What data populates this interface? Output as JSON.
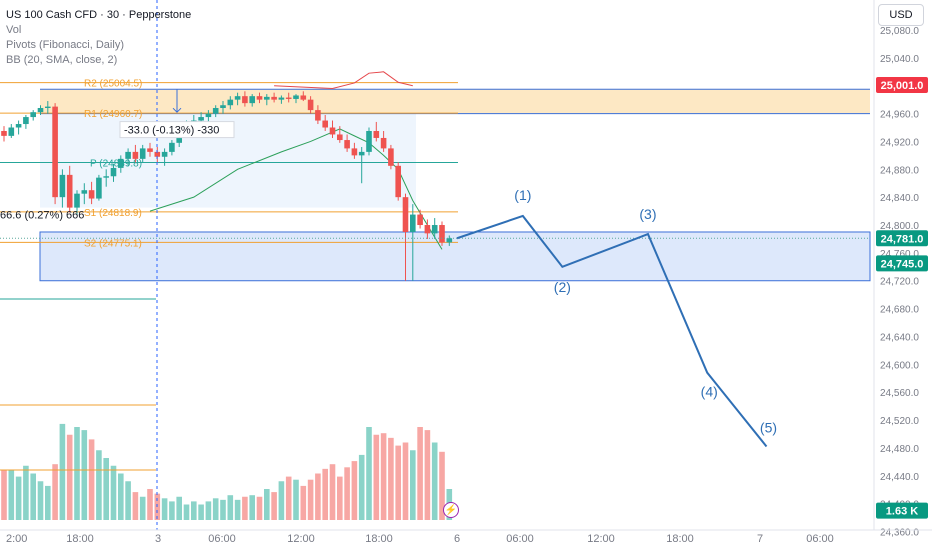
{
  "header": {
    "symbol_title": "US 100 Cash CFD · 30 · Pepperstone",
    "indicators": [
      "Vol",
      "Pivots (Fibonacci, Daily)",
      "BB (20, SMA, close, 2)"
    ],
    "currency": "USD"
  },
  "colors": {
    "up": "#26a69a",
    "down": "#ef5350",
    "pivot": "#f0a030",
    "bb_upper": "#e5474b",
    "bb_lower": "#2ca05a",
    "wave": "#2f6fb5",
    "zone_orange": "#fde8c4",
    "zone_blue": "#dde8fb",
    "price_red": "#f23645",
    "price_green": "#089981"
  },
  "chart_data": {
    "type": "candlestick",
    "y_axis": {
      "ticks": [
        "25,080.0",
        "25,040.0",
        "25,000.0",
        "24,960.0",
        "24,920.0",
        "24,880.0",
        "24,840.0",
        "24,800.0",
        "24,760.0",
        "24,720.0",
        "24,680.0",
        "24,640.0",
        "24,600.0",
        "24,560.0",
        "24,520.0",
        "24,480.0",
        "24,440.0",
        "24,400.0",
        "24,360.0"
      ],
      "ylim": [
        24360,
        25080
      ]
    },
    "x_axis": {
      "ticks": [
        "2:00",
        "18:00",
        "3",
        "06:00",
        "12:00",
        "18:00",
        "6",
        "06:00",
        "12:00",
        "18:00",
        "7",
        "06:00"
      ]
    },
    "candles": [
      [
        24935,
        24942,
        24920,
        24928
      ],
      [
        24928,
        24945,
        24925,
        24940
      ],
      [
        24940,
        24950,
        24930,
        24945
      ],
      [
        24945,
        24958,
        24938,
        24955
      ],
      [
        24955,
        24965,
        24950,
        24962
      ],
      [
        24962,
        24972,
        24958,
        24968
      ],
      [
        24968,
        24978,
        24960,
        24970
      ],
      [
        24970,
        24975,
        24830,
        24840
      ],
      [
        24840,
        24880,
        24825,
        24872
      ],
      [
        24872,
        24885,
        24818,
        24825
      ],
      [
        24825,
        24850,
        24815,
        24845
      ],
      [
        24845,
        24860,
        24830,
        24850
      ],
      [
        24850,
        24862,
        24830,
        24838
      ],
      [
        24838,
        24872,
        24835,
        24868
      ],
      [
        24868,
        24880,
        24855,
        24870
      ],
      [
        24870,
        24888,
        24862,
        24882
      ],
      [
        24882,
        24900,
        24875,
        24895
      ],
      [
        24895,
        24910,
        24885,
        24905
      ],
      [
        24905,
        24915,
        24890,
        24895
      ],
      [
        24895,
        24915,
        24890,
        24910
      ],
      [
        24910,
        24918,
        24898,
        24905
      ],
      [
        24905,
        24912,
        24890,
        24898
      ],
      [
        24898,
        24910,
        24885,
        24905
      ],
      [
        24905,
        24922,
        24900,
        24918
      ],
      [
        24918,
        24935,
        24912,
        24932
      ],
      [
        24932,
        24950,
        24928,
        24945
      ],
      [
        24945,
        24958,
        24938,
        24950
      ],
      [
        24950,
        24962,
        24940,
        24955
      ],
      [
        24955,
        24965,
        24948,
        24960
      ],
      [
        24960,
        24972,
        24955,
        24968
      ],
      [
        24968,
        24978,
        24960,
        24972
      ],
      [
        24972,
        24985,
        24966,
        24980
      ],
      [
        24980,
        24990,
        24972,
        24985
      ],
      [
        24985,
        24992,
        24970,
        24975
      ],
      [
        24975,
        24988,
        24970,
        24985
      ],
      [
        24985,
        24990,
        24975,
        24980
      ],
      [
        24980,
        24988,
        24972,
        24984
      ],
      [
        24984,
        24990,
        24976,
        24980
      ],
      [
        24980,
        24986,
        24974,
        24983
      ],
      [
        24983,
        24990,
        24976,
        24981
      ],
      [
        24981,
        24988,
        24975,
        24986
      ],
      [
        24986,
        24992,
        24978,
        24980
      ],
      [
        24980,
        24985,
        24960,
        24965
      ],
      [
        24965,
        24972,
        24945,
        24950
      ],
      [
        24950,
        24958,
        24935,
        24940
      ],
      [
        24940,
        24950,
        24925,
        24930
      ],
      [
        24930,
        24942,
        24918,
        24922
      ],
      [
        24922,
        24930,
        24905,
        24910
      ],
      [
        24910,
        24918,
        24895,
        24900
      ],
      [
        24900,
        24912,
        24860,
        24905
      ],
      [
        24905,
        24940,
        24900,
        24935
      ],
      [
        24935,
        24948,
        24920,
        24925
      ],
      [
        24925,
        24935,
        24905,
        24910
      ],
      [
        24910,
        24915,
        24880,
        24885
      ],
      [
        24885,
        24890,
        24835,
        24840
      ],
      [
        24840,
        24845,
        24720,
        24790
      ],
      [
        24790,
        24830,
        24720,
        24815
      ],
      [
        24815,
        24822,
        24795,
        24800
      ],
      [
        24800,
        24808,
        24780,
        24788
      ],
      [
        24788,
        24810,
        24780,
        24800
      ],
      [
        24800,
        24805,
        24770,
        24775
      ],
      [
        24775,
        24785,
        24770,
        24781
      ]
    ],
    "volume_pct": [
      32,
      32,
      28,
      35,
      30,
      25,
      22,
      36,
      62,
      55,
      60,
      58,
      52,
      45,
      40,
      35,
      30,
      25,
      18,
      15,
      20,
      17,
      14,
      12,
      15,
      10,
      12,
      10,
      12,
      14,
      13,
      16,
      13,
      15,
      16,
      15,
      20,
      18,
      25,
      28,
      26,
      22,
      26,
      30,
      33,
      36,
      28,
      34,
      38,
      42,
      60,
      55,
      56,
      53,
      48,
      50,
      45,
      60,
      58,
      50,
      44,
      20
    ],
    "pivots": [
      {
        "label": "R2 (25004.5)",
        "value": 25004.5
      },
      {
        "label": "R1 (24960.7)",
        "value": 24960.7
      },
      {
        "label": "P (24889.8)",
        "value": 24889.8
      },
      {
        "label": "S1 (24818.9)",
        "value": 24818.9
      },
      {
        "label": "S2 (24775.1)",
        "value": 24775.1
      }
    ],
    "bb_upper": [
      [
        37,
        25000
      ],
      [
        41,
        24998
      ],
      [
        45,
        24996
      ],
      [
        48,
        25004
      ],
      [
        50,
        25018
      ],
      [
        52,
        25020
      ],
      [
        54,
        25005
      ],
      [
        56,
        25000
      ]
    ],
    "bb_lower": [
      [
        20,
        24820
      ],
      [
        26,
        24840
      ],
      [
        32,
        24880
      ],
      [
        38,
        24905
      ],
      [
        42,
        24920
      ],
      [
        46,
        24938
      ],
      [
        48,
        24928
      ],
      [
        50,
        24918
      ],
      [
        52,
        24900
      ],
      [
        54,
        24880
      ],
      [
        56,
        24835
      ],
      [
        60,
        24765
      ]
    ],
    "zones": [
      {
        "type": "supply",
        "from": 24960,
        "to": 24995
      },
      {
        "type": "demand",
        "from": 24720,
        "to": 24790
      }
    ],
    "measure_labels": [
      {
        "text": "-33.0 (-0.13%) -330",
        "price": 24937
      },
      {
        "text": "66.6 (0.27%) 666",
        "price": 24815
      }
    ],
    "wave_path": [
      {
        "label": "",
        "time": "6 00:00",
        "price": 24781
      },
      {
        "label": "(1)",
        "time": "6 05:00",
        "price": 24813
      },
      {
        "label": "(2)",
        "time": "6 08:00",
        "price": 24740
      },
      {
        "label": "(3)",
        "time": "6 14:30",
        "price": 24787
      },
      {
        "label": "(4)",
        "time": "6 19:00",
        "price": 24588
      },
      {
        "label": "(5)",
        "time": "6 23:30",
        "price": 24482
      }
    ],
    "price_labels": [
      {
        "text": "25,001.0",
        "price": 25001,
        "color": "#f23645"
      },
      {
        "text": "24,781.0",
        "price": 24781,
        "color": "#089981"
      },
      {
        "text": "24,745.0",
        "price": 24745,
        "color": "#089981"
      },
      {
        "text": "1.63 K",
        "price": 24390,
        "color": "#089981"
      }
    ]
  }
}
